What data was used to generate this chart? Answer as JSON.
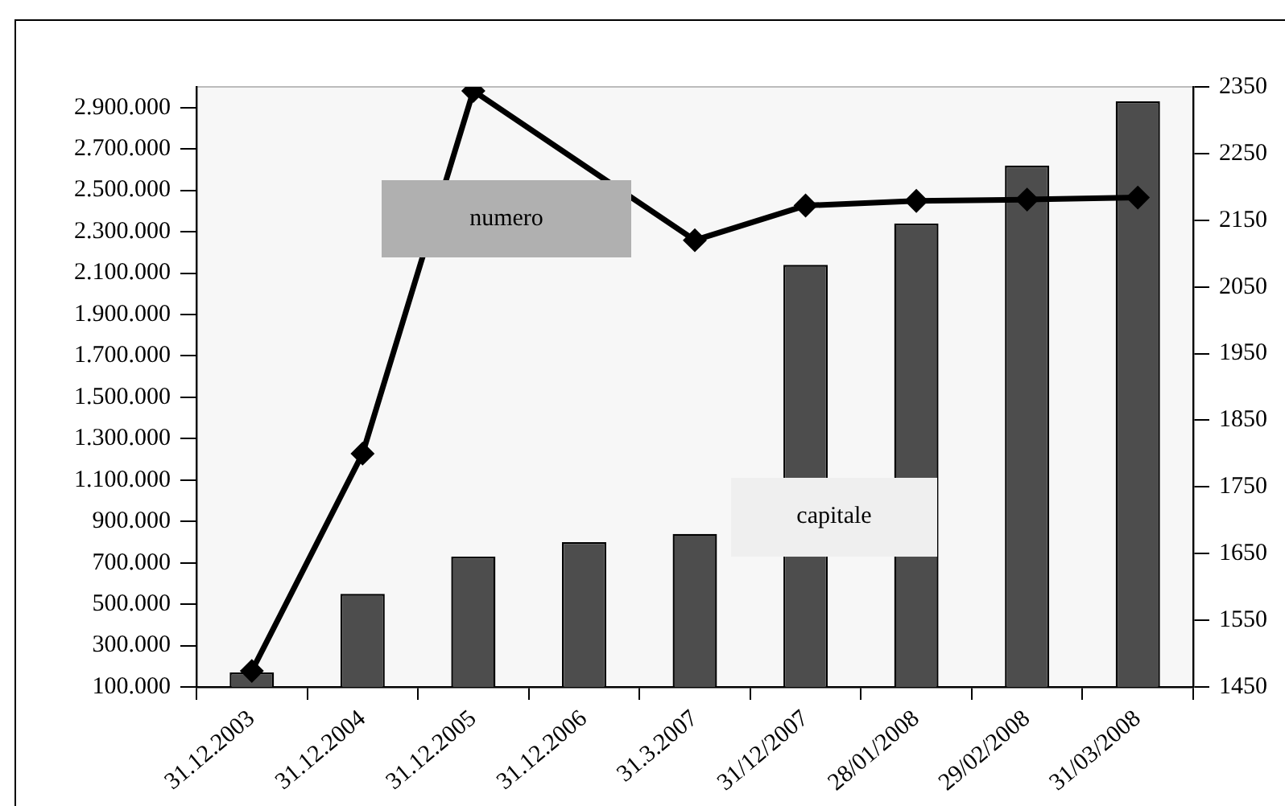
{
  "chart_data": {
    "type": "bar",
    "categories": [
      "31.12.2003",
      "31.12.2004",
      "31.12.2005",
      "31.12.2006",
      "31.3.2007",
      "31/12/2007",
      "28/01/2008",
      "29/02/2008",
      "31/03/2008"
    ],
    "series": [
      {
        "name": "capitale",
        "color": "#4d4d4d",
        "values": [
          170000,
          550000,
          730000,
          800000,
          840000,
          2140000,
          2340000,
          2620000,
          2930000
        ]
      },
      {
        "name": "numero",
        "type": "line",
        "axis": "y2",
        "color": "#000000",
        "values": [
          1474,
          1800,
          2344,
          null,
          2120,
          2172,
          2179,
          2181,
          2184
        ]
      }
    ],
    "ylim": [
      100000,
      3000000
    ],
    "yticks": [
      {
        "value": 100000,
        "label": "100.000"
      },
      {
        "value": 300000,
        "label": "300.000"
      },
      {
        "value": 500000,
        "label": "500.000"
      },
      {
        "value": 700000,
        "label": "700.000"
      },
      {
        "value": 900000,
        "label": "900.000"
      },
      {
        "value": 1100000,
        "label": "1.100.000"
      },
      {
        "value": 1300000,
        "label": "1.300.000"
      },
      {
        "value": 1500000,
        "label": "1.500.000"
      },
      {
        "value": 1700000,
        "label": "1.700.000"
      },
      {
        "value": 1900000,
        "label": "1.900.000"
      },
      {
        "value": 2100000,
        "label": "2.100.000"
      },
      {
        "value": 2300000,
        "label": "2.300.000"
      },
      {
        "value": 2500000,
        "label": "2.500.000"
      },
      {
        "value": 2700000,
        "label": "2.700.000"
      },
      {
        "value": 2900000,
        "label": "2.900.000"
      }
    ],
    "y2lim": [
      1450,
      2350
    ],
    "y2ticks": [
      1450,
      1550,
      1650,
      1750,
      1850,
      1950,
      2050,
      2150,
      2250,
      2350
    ],
    "marker": "diamond",
    "line_style": "solid",
    "grid": false
  }
}
